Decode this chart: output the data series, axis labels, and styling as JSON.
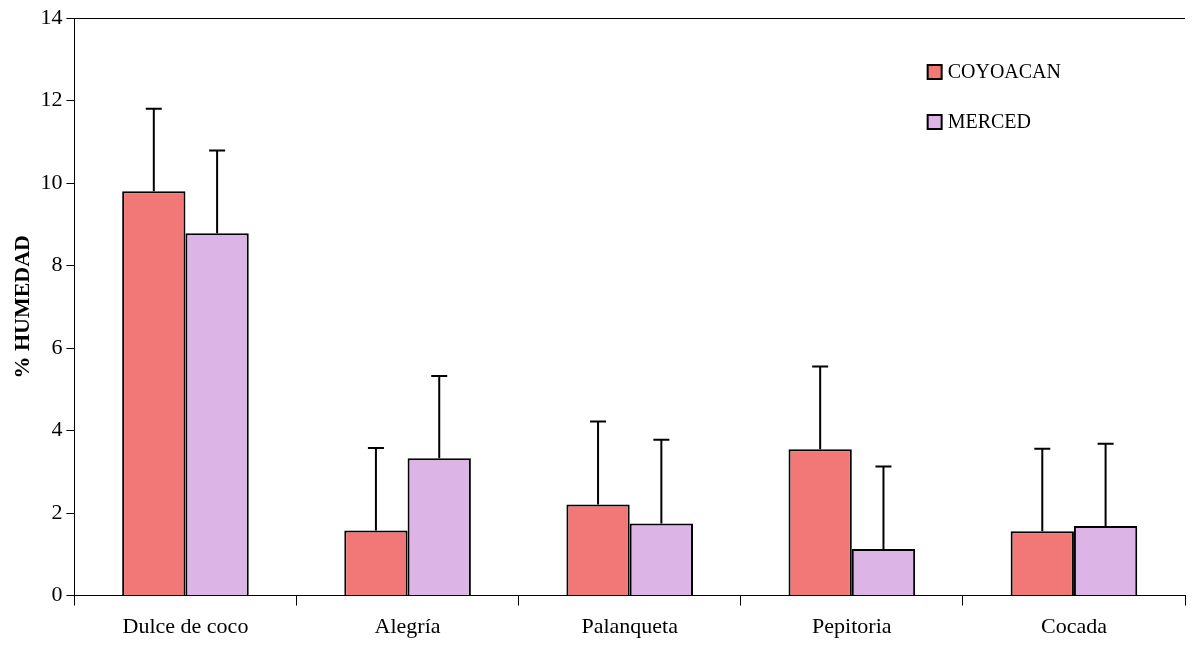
{
  "chart_data": {
    "type": "bar",
    "ylabel": "% HUMEDAD",
    "categories": [
      "Dulce de coco",
      "Alegría",
      "Palanqueta",
      "Pepitoria",
      "Cocada"
    ],
    "series": [
      {
        "name": "COYOACAN",
        "color": "#f27878",
        "values": [
          9.8,
          1.58,
          2.21,
          3.55,
          1.56
        ],
        "errors": [
          [
            9.8,
            11.8
          ],
          [
            1.58,
            3.58
          ],
          [
            2.21,
            4.22
          ],
          [
            3.55,
            5.55
          ],
          [
            1.56,
            3.56
          ]
        ]
      },
      {
        "name": "MERCED",
        "color": "#dcb4e6",
        "values": [
          8.78,
          3.33,
          1.75,
          1.13,
          1.69
        ],
        "errors": [
          [
            8.78,
            10.79
          ],
          [
            3.33,
            5.32
          ],
          [
            1.75,
            3.78
          ],
          [
            1.13,
            3.13
          ],
          [
            1.69,
            3.68
          ]
        ]
      }
    ],
    "ylim": [
      0,
      14
    ],
    "yticks": [
      0,
      2,
      4,
      6,
      8,
      10,
      12,
      14
    ],
    "grid": false,
    "legend": "top right"
  }
}
